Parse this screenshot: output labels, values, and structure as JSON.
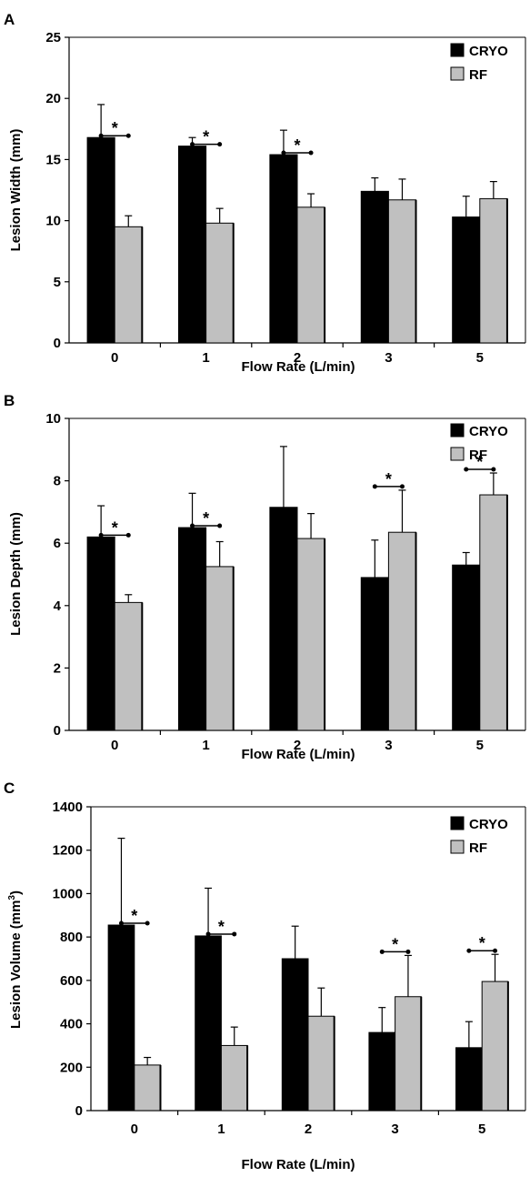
{
  "chart_data": [
    {
      "type": "bar",
      "panel_label": "A",
      "categories": [
        "0",
        "1",
        "2",
        "3",
        "5"
      ],
      "xlabel": "Flow Rate (L/min)",
      "ylabel": "Lesion Width (mm)",
      "ylim": [
        0,
        25
      ],
      "yticks": [
        0,
        5,
        10,
        15,
        20,
        25
      ],
      "grid": false,
      "legend_position": "top-right",
      "series": [
        {
          "name": "CRYO",
          "color": "#000000",
          "values": [
            16.8,
            16.1,
            15.4,
            12.4,
            10.3
          ],
          "errors": [
            2.7,
            0.7,
            2.0,
            1.1,
            1.7
          ]
        },
        {
          "name": "RF",
          "color": "#c0c0c0",
          "values": [
            9.5,
            9.8,
            11.1,
            11.7,
            11.8
          ],
          "errors": [
            0.9,
            1.2,
            1.1,
            1.7,
            1.4
          ]
        }
      ],
      "significance": [
        {
          "category_index": 0,
          "label": "*"
        },
        {
          "category_index": 1,
          "label": "*"
        },
        {
          "category_index": 2,
          "label": "*"
        }
      ]
    },
    {
      "type": "bar",
      "panel_label": "B",
      "categories": [
        "0",
        "1",
        "2",
        "3",
        "5"
      ],
      "xlabel": "Flow Rate (L/min)",
      "ylabel": "Lesion Depth (mm)",
      "ylim": [
        0,
        10
      ],
      "yticks": [
        0,
        2,
        4,
        6,
        8,
        10
      ],
      "grid": false,
      "legend_position": "top-right",
      "series": [
        {
          "name": "CRYO",
          "color": "#000000",
          "values": [
            6.2,
            6.5,
            7.15,
            4.9,
            5.3
          ],
          "errors": [
            1.0,
            1.1,
            1.95,
            1.2,
            0.4
          ]
        },
        {
          "name": "RF",
          "color": "#c0c0c0",
          "values": [
            4.1,
            5.25,
            6.15,
            6.35,
            7.55
          ],
          "errors": [
            0.25,
            0.8,
            0.8,
            1.35,
            0.7
          ]
        }
      ],
      "significance": [
        {
          "category_index": 0,
          "label": "*"
        },
        {
          "category_index": 1,
          "label": "*"
        },
        {
          "category_index": 3,
          "label": "*"
        },
        {
          "category_index": 4,
          "label": "*"
        }
      ]
    },
    {
      "type": "bar",
      "panel_label": "C",
      "categories": [
        "0",
        "1",
        "2",
        "3",
        "5"
      ],
      "xlabel": "Flow Rate (L/min)",
      "ylabel": "Lesion Volume (mm",
      "ylabel_superscript": "3",
      "ylabel_suffix": ")",
      "ylim": [
        0,
        1400
      ],
      "yticks": [
        0,
        200,
        400,
        600,
        800,
        1000,
        1200,
        1400
      ],
      "grid": false,
      "legend_position": "top-right",
      "series": [
        {
          "name": "CRYO",
          "color": "#000000",
          "values": [
            855,
            805,
            700,
            360,
            290
          ],
          "errors": [
            400,
            220,
            150,
            115,
            120
          ]
        },
        {
          "name": "RF",
          "color": "#c0c0c0",
          "values": [
            210,
            300,
            435,
            525,
            595
          ],
          "errors": [
            35,
            85,
            130,
            190,
            125
          ]
        }
      ],
      "significance": [
        {
          "category_index": 0,
          "label": "*"
        },
        {
          "category_index": 1,
          "label": "*"
        },
        {
          "category_index": 3,
          "label": "*"
        },
        {
          "category_index": 4,
          "label": "*"
        }
      ]
    }
  ]
}
